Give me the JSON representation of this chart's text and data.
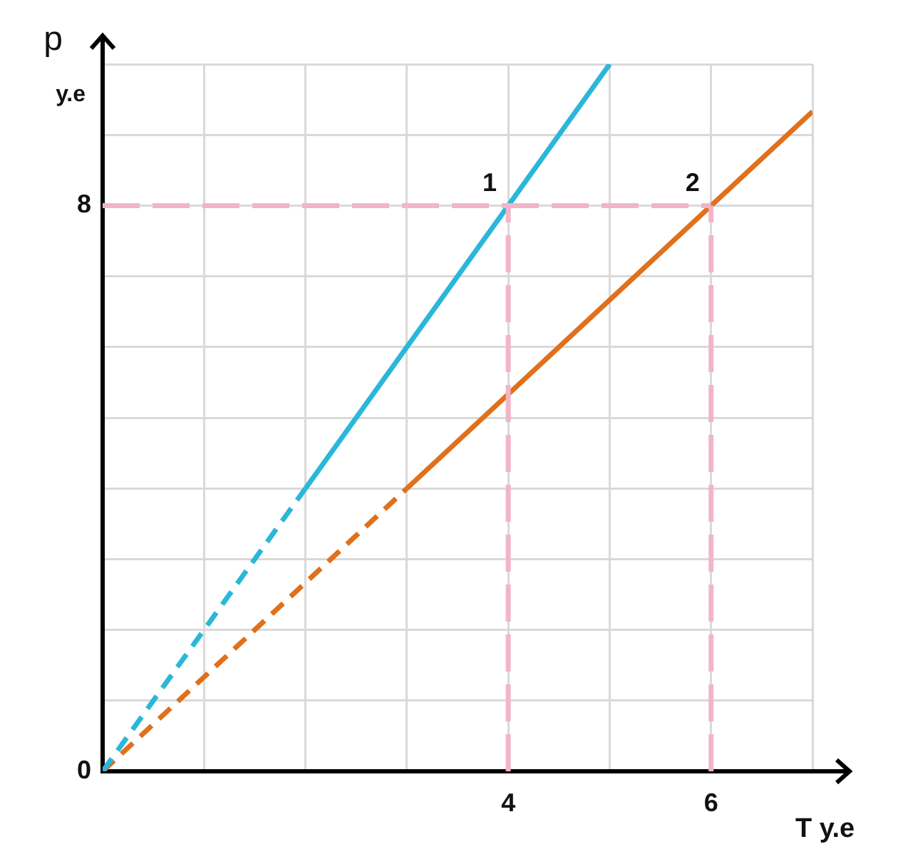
{
  "chart_data": {
    "type": "line",
    "xlabel": "T у.е",
    "ylabel": "p у.е",
    "xlim": [
      0,
      7
    ],
    "ylim": [
      0,
      10
    ],
    "xticks": [
      {
        "value": 0,
        "label": null
      },
      {
        "value": 1,
        "label": null
      },
      {
        "value": 2,
        "label": null
      },
      {
        "value": 3,
        "label": null
      },
      4,
      {
        "value": 5,
        "label": null
      },
      6,
      {
        "value": 7,
        "label": null
      }
    ],
    "yticks": [
      0,
      {
        "value": 1,
        "label": null
      },
      {
        "value": 2,
        "label": null
      },
      {
        "value": 3,
        "label": null
      },
      {
        "value": 4,
        "label": null
      },
      {
        "value": 5,
        "label": null
      },
      {
        "value": 6,
        "label": null
      },
      {
        "value": 7,
        "label": null
      },
      8,
      {
        "value": 9,
        "label": null
      },
      {
        "value": 10,
        "label": null
      }
    ],
    "grid": true,
    "marker": "none",
    "series": [
      {
        "color": "#f2b5c8",
        "line_style": "dashed",
        "x": [
          0,
          6
        ],
        "values": [
          8,
          8
        ]
      },
      {
        "color": "#f2b5c8",
        "line_style": "dashed",
        "x": [
          4,
          4
        ],
        "values": [
          0,
          8
        ]
      },
      {
        "color": "#f2b5c8",
        "line_style": "dashed",
        "x": [
          6,
          6
        ],
        "values": [
          0,
          8
        ]
      },
      {
        "color": "#2ab7d9",
        "line_style": "dashed",
        "x": [
          0,
          2
        ],
        "values": [
          0,
          4
        ]
      },
      {
        "color": "#2ab7d9",
        "line_style": "solid",
        "x": [
          2,
          5
        ],
        "values": [
          4,
          10
        ]
      },
      {
        "color": "#e0701c",
        "line_style": "dashed",
        "x": [
          0,
          3
        ],
        "values": [
          0,
          4
        ]
      },
      {
        "color": "#e0701c",
        "line_style": "solid",
        "x": [
          3,
          7
        ],
        "values": [
          4,
          9.33
        ]
      }
    ],
    "annotations": [
      {
        "text": "1",
        "x": 4,
        "y": 8
      },
      {
        "text": "2",
        "x": 6,
        "y": 8
      }
    ]
  }
}
